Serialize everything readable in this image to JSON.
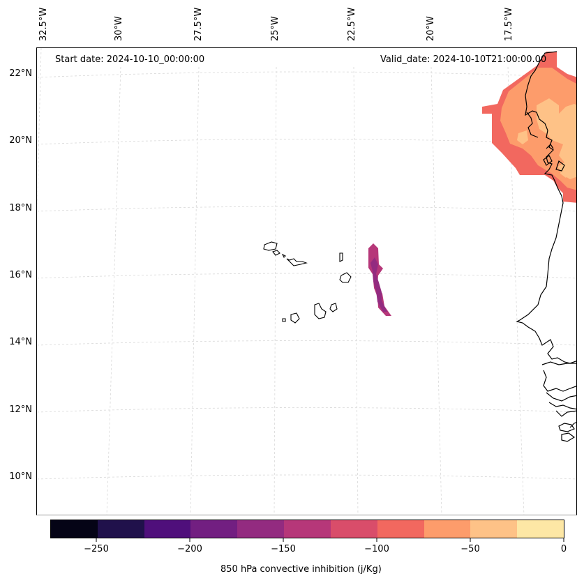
{
  "header": {
    "start_date": "Start date: 2024-10-10_00:00:00",
    "valid_date": "Valid_date: 2024-10-10T21:00:00.00"
  },
  "axes": {
    "longitude_labels": [
      "32.5°W",
      "30°W",
      "27.5°W",
      "25°W",
      "22.5°W",
      "20°W",
      "17.5°W"
    ],
    "latitude_labels": [
      "22°N",
      "20°N",
      "18°N",
      "16°N",
      "14°N",
      "12°N",
      "10°N"
    ]
  },
  "colorbar": {
    "label": "850 hPa convective inhibition (j/Kg)",
    "ticks": [
      "−250",
      "−200",
      "−150",
      "−100",
      "−50",
      "0"
    ],
    "colors": [
      "#050416",
      "#20114b",
      "#4f0f7b",
      "#721f81",
      "#932b80",
      "#b63779",
      "#d94d6a",
      "#f2685f",
      "#fd9c6b",
      "#fec287",
      "#fde7a5"
    ]
  },
  "fields": {
    "island_band_color": "#932b80",
    "island_band_edge_color": "#b63779",
    "coast_outer_color": "#f2685f",
    "coast_mid_color": "#fd9c6b",
    "coast_inner_color": "#fec287"
  }
}
